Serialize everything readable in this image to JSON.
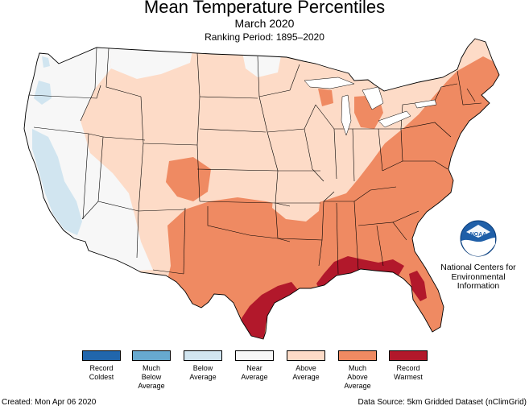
{
  "header": {
    "title": "Mean Temperature Percentiles",
    "subtitle": "March 2020",
    "period": "Ranking Period: 1895–2020"
  },
  "map": {
    "land_region": "CONUS",
    "dominant_class": "above-average",
    "region_categories": [
      {
        "region": "west-coast-california",
        "category": "below-average"
      },
      {
        "region": "pacific-northwest",
        "category": "near-average"
      },
      {
        "region": "great-basin",
        "category": "near-average"
      },
      {
        "region": "northern-rockies-plains",
        "category": "above-average"
      },
      {
        "region": "upper-midwest",
        "category": "above-average"
      },
      {
        "region": "southern-plains",
        "category": "much-above-average"
      },
      {
        "region": "texas",
        "category": "much-above-average"
      },
      {
        "region": "southeast",
        "category": "much-above-average"
      },
      {
        "region": "ohio-valley",
        "category": "much-above-average"
      },
      {
        "region": "mid-atlantic-northeast",
        "category": "much-above-average"
      },
      {
        "region": "upper-texas-coast",
        "category": "record-warmest"
      },
      {
        "region": "gulf-coast",
        "category": "record-warmest"
      },
      {
        "region": "north-florida",
        "category": "record-warmest"
      }
    ]
  },
  "legend": {
    "items": [
      {
        "key": "record-coldest",
        "label": "Record\nColdest",
        "color": "#2166ac"
      },
      {
        "key": "much-below-average",
        "label": "Much\nBelow\nAverage",
        "color": "#67a9cf"
      },
      {
        "key": "below-average",
        "label": "Below\nAverage",
        "color": "#d1e5f0"
      },
      {
        "key": "near-average",
        "label": "Near\nAverage",
        "color": "#f7f7f7"
      },
      {
        "key": "above-average",
        "label": "Above\nAverage",
        "color": "#fddbc7"
      },
      {
        "key": "much-above-average",
        "label": "Much\nAbove\nAverage",
        "color": "#ef8a62"
      },
      {
        "key": "record-warmest",
        "label": "Record\nWarmest",
        "color": "#b2182b"
      }
    ]
  },
  "branding": {
    "logo_name": "noaa-logo",
    "logo_text": "NOAA",
    "org_name": "National Centers for\nEnvironmental\nInformation"
  },
  "footer": {
    "created": "Created: Mon Apr 06 2020",
    "source": "Data Source: 5km Gridded Dataset (nClimGrid)"
  }
}
